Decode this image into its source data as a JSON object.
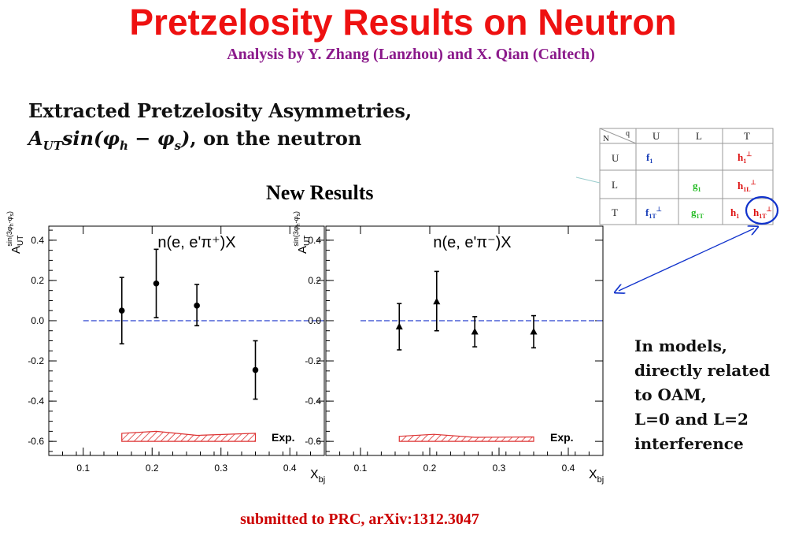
{
  "slide": {
    "title": "Pretzelosity Results on Neutron",
    "subtitle": "Analysis by Y. Zhang (Lanzhou) and X. Qian (Caltech)",
    "heading_line1": "Extracted Pretzelosity Asymmetries,",
    "heading_line2_suffix": ", on the neutron",
    "new_results": "New Results",
    "note_lines": [
      " In models,",
      "directly related",
      "to OAM,",
      "L=0 and L=2",
      "interference"
    ],
    "footer": "submitted to PRC, arXiv:1312.3047"
  },
  "table": {
    "corner_n": "N",
    "corner_q": "q",
    "cols": [
      "U",
      "L",
      "T"
    ],
    "rows": [
      "U",
      "L",
      "T"
    ]
  },
  "chart_data": [
    {
      "type": "scatter",
      "title": "n(e, e'π⁺)X",
      "xlabel": "x_bj",
      "ylabel": "A_UT^{sin(3φh-φs)}",
      "xlim": [
        0.05,
        0.45
      ],
      "ylim": [
        -0.67,
        0.47
      ],
      "x_ticks": [
        "0.1",
        "0.2",
        "0.3",
        "0.4"
      ],
      "y_ticks": [
        "0.4",
        "0.2",
        "0.0",
        "-0.2",
        "-0.4",
        "-0.6"
      ],
      "marker": "circle",
      "points": [
        {
          "x": 0.156,
          "y": 0.05,
          "err_low": 0.165,
          "err_high": 0.165
        },
        {
          "x": 0.206,
          "y": 0.185,
          "err_low": 0.17,
          "err_high": 0.17
        },
        {
          "x": 0.265,
          "y": 0.075,
          "err_low": 0.1,
          "err_high": 0.105
        },
        {
          "x": 0.35,
          "y": -0.245,
          "err_low": 0.145,
          "err_high": 0.145
        }
      ],
      "zero_line": 0.0,
      "systematic_label": "Exp.",
      "systematic_band": [
        {
          "x": 0.156,
          "top": -0.56,
          "bottom": -0.6
        },
        {
          "x": 0.206,
          "top": -0.55,
          "bottom": -0.6
        },
        {
          "x": 0.265,
          "top": -0.57,
          "bottom": -0.6
        },
        {
          "x": 0.35,
          "top": -0.56,
          "bottom": -0.6
        }
      ]
    },
    {
      "type": "scatter",
      "title": "n(e, e'π⁻)X",
      "xlabel": "x_bj",
      "ylabel": "A_UT^{sin(3φh-φs)}",
      "xlim": [
        0.05,
        0.45
      ],
      "ylim": [
        -0.67,
        0.47
      ],
      "x_ticks": [
        "0.1",
        "0.2",
        "0.3",
        "0.4"
      ],
      "y_ticks": [
        "0.4",
        "0.2",
        "0.0",
        "-0.2",
        "-0.4",
        "-0.6"
      ],
      "marker": "triangle",
      "points": [
        {
          "x": 0.156,
          "y": -0.03,
          "err_low": 0.115,
          "err_high": 0.115
        },
        {
          "x": 0.21,
          "y": 0.095,
          "err_low": 0.145,
          "err_high": 0.15
        },
        {
          "x": 0.265,
          "y": -0.055,
          "err_low": 0.075,
          "err_high": 0.075
        },
        {
          "x": 0.35,
          "y": -0.055,
          "err_low": 0.08,
          "err_high": 0.08
        }
      ],
      "zero_line": 0.0,
      "systematic_label": "Exp.",
      "systematic_band": [
        {
          "x": 0.156,
          "top": -0.575,
          "bottom": -0.6
        },
        {
          "x": 0.206,
          "top": -0.565,
          "bottom": -0.6
        },
        {
          "x": 0.265,
          "top": -0.58,
          "bottom": -0.6
        },
        {
          "x": 0.35,
          "top": -0.578,
          "bottom": -0.6
        }
      ]
    }
  ],
  "colors": {
    "title": "#ee1111",
    "subtitle": "#8b1a8b",
    "footer": "#cc0000",
    "zero_line": "#6677dd",
    "band": "#dd3333",
    "annotation": "#1133cc",
    "table_blue": "#1a3fb8",
    "table_green": "#22bb22",
    "table_red": "#dd1111"
  }
}
